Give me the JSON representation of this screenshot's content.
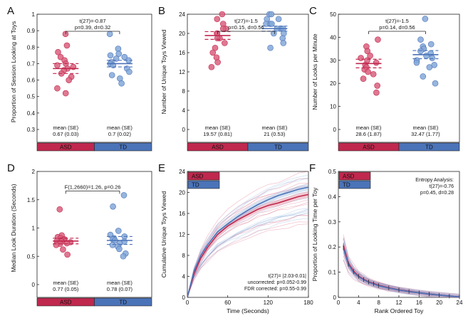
{
  "figure": {
    "colors": {
      "asd": "#c0284e",
      "td": "#4b73b8",
      "asd_point": "#d9607e",
      "td_point": "#84a8d8",
      "frame": "#222222"
    },
    "group_labels": [
      "ASD",
      "TD"
    ]
  },
  "chart_data": [
    {
      "panel": "A",
      "type": "scatter",
      "ylabel": "Proportion of Session Looking at Toys",
      "ylim": [
        0.3,
        1.0
      ],
      "yticks": [
        0.3,
        0.4,
        0.5,
        0.6,
        0.7,
        0.8,
        0.9,
        1
      ],
      "stat_lines": [
        "t(27)=-0.87",
        "p=0.39, d=0.32"
      ],
      "groups": [
        {
          "name": "ASD",
          "mean": 0.67,
          "se": 0.03,
          "mean_label": "mean (SE)",
          "value_label": "0.67 (0.03)",
          "values": [
            0.88,
            0.81,
            0.77,
            0.74,
            0.72,
            0.7,
            0.69,
            0.68,
            0.67,
            0.66,
            0.64,
            0.62,
            0.6,
            0.55,
            0.52
          ]
        },
        {
          "name": "TD",
          "mean": 0.7,
          "se": 0.02,
          "mean_label": "mean (SE)",
          "value_label": "0.7 (0.02)",
          "values": [
            0.88,
            0.79,
            0.76,
            0.75,
            0.74,
            0.73,
            0.72,
            0.71,
            0.7,
            0.69,
            0.67,
            0.65,
            0.63,
            0.61,
            0.58
          ]
        }
      ]
    },
    {
      "panel": "B",
      "type": "scatter",
      "ylabel": "Number of Unique Toys Viewed",
      "ylim": [
        0,
        24
      ],
      "yticks": [
        0,
        4,
        8,
        12,
        16,
        20,
        24
      ],
      "stat_lines": [
        "t(27)=-1.5",
        "p=0.15, d=0.56"
      ],
      "groups": [
        {
          "name": "ASD",
          "mean": 19.57,
          "se": 0.81,
          "mean_label": "mean (SE)",
          "value_label": "19.57 (0.81)",
          "values": [
            24,
            23,
            22,
            21,
            21,
            20,
            20,
            19,
            19,
            18,
            17,
            16,
            15,
            14,
            13
          ]
        },
        {
          "name": "TD",
          "mean": 21,
          "se": 0.53,
          "mean_label": "mean (SE)",
          "value_label": "21 (0.53)",
          "values": [
            24,
            24,
            23,
            23,
            22,
            22,
            22,
            21,
            21,
            21,
            20,
            20,
            19,
            18,
            17
          ]
        }
      ]
    },
    {
      "panel": "C",
      "type": "scatter",
      "ylabel": "Number of Looks per Minute",
      "ylim": [
        0,
        50
      ],
      "yticks": [
        0,
        10,
        20,
        30,
        40,
        50
      ],
      "stat_lines": [
        "t(27)=-1.5",
        "p=0.14, d=0.56"
      ],
      "groups": [
        {
          "name": "ASD",
          "mean": 28.6,
          "se": 1.87,
          "mean_label": "mean (SE)",
          "value_label": "28.6 (1.87)",
          "values": [
            39,
            36,
            34,
            32,
            31,
            30,
            29,
            28,
            27,
            26,
            25,
            24,
            22,
            19,
            16
          ]
        },
        {
          "name": "TD",
          "mean": 32.47,
          "se": 1.77,
          "mean_label": "mean (SE)",
          "value_label": "32.47 (1.77)",
          "values": [
            48,
            39,
            37,
            36,
            35,
            34,
            33,
            32,
            31,
            30,
            29,
            28,
            27,
            23,
            20
          ]
        }
      ]
    },
    {
      "panel": "D",
      "type": "scatter",
      "ylabel": "Median Look Duration (Seconds)",
      "ylim": [
        0,
        2
      ],
      "yticks": [
        0,
        0.5,
        1,
        1.5,
        2
      ],
      "stat_lines": [
        "F(1,2660)=1.26, p=0.26"
      ],
      "groups": [
        {
          "name": "ASD",
          "mean": 0.77,
          "se": 0.05,
          "mean_label": "mean (SE)",
          "value_label": "0.77 (0.05)",
          "values": [
            1.33,
            0.87,
            0.84,
            0.82,
            0.8,
            0.79,
            0.78,
            0.77,
            0.76,
            0.75,
            0.73,
            0.72,
            0.7,
            0.62,
            0.53
          ]
        },
        {
          "name": "TD",
          "mean": 0.78,
          "se": 0.07,
          "mean_label": "mean (SE)",
          "value_label": "0.78 (0.07)",
          "values": [
            1.58,
            1.38,
            0.95,
            0.88,
            0.85,
            0.82,
            0.8,
            0.78,
            0.76,
            0.73,
            0.7,
            0.67,
            0.63,
            0.55,
            0.5
          ]
        }
      ]
    },
    {
      "panel": "E",
      "type": "line",
      "xlabel": "Time (Seconds)",
      "ylabel": "Cumulative Unique Toys Viewed",
      "xlim": [
        0,
        180
      ],
      "ylim": [
        0,
        24
      ],
      "xticks": [
        0,
        60,
        120,
        180
      ],
      "yticks": [
        0,
        4,
        8,
        12,
        16,
        20,
        24
      ],
      "legend": [
        "ASD",
        "TD"
      ],
      "legend_placement": "top-left",
      "annotation": [
        "t(27)= |2.03-0.01|",
        "uncorrected: p=0.052-0.99",
        "FDR corrected: p=0.55-0.99"
      ],
      "series": [
        {
          "name": "ASD",
          "x": [
            0,
            10,
            20,
            30,
            45,
            60,
            75,
            90,
            105,
            120,
            135,
            150,
            165,
            180
          ],
          "y": [
            0,
            4.5,
            7.5,
            9.5,
            12.0,
            13.6,
            14.8,
            15.8,
            16.8,
            17.5,
            18.0,
            18.6,
            19.2,
            19.6
          ]
        },
        {
          "name": "TD",
          "x": [
            0,
            10,
            20,
            30,
            45,
            60,
            75,
            90,
            105,
            120,
            135,
            150,
            165,
            180
          ],
          "y": [
            0,
            5.0,
            8.0,
            10.0,
            12.5,
            14.0,
            15.4,
            16.6,
            17.7,
            18.6,
            19.4,
            20.0,
            20.6,
            21.0
          ]
        }
      ]
    },
    {
      "panel": "F",
      "type": "line",
      "xlabel": "Rank Ordered Toy",
      "ylabel": "Proportion of Looking Time per Toy",
      "xlim": [
        0,
        24
      ],
      "ylim": [
        0,
        0.5
      ],
      "xticks": [
        0,
        4,
        8,
        12,
        16,
        20,
        24
      ],
      "yticks": [
        0,
        0.1,
        0.2,
        0.3,
        0.4,
        0.5
      ],
      "legend": [
        "ASD",
        "TD"
      ],
      "legend_placement": "top-left",
      "annotation": [
        "Entropy Analysis:",
        "t(27)=-0.76",
        "p=0.45, d=0.28"
      ],
      "series": [
        {
          "name": "ASD",
          "x": [
            1,
            2,
            3,
            4,
            5,
            6,
            7,
            8,
            10,
            12,
            14,
            16,
            18,
            20,
            22,
            24
          ],
          "y": [
            0.205,
            0.135,
            0.105,
            0.085,
            0.072,
            0.062,
            0.055,
            0.048,
            0.038,
            0.03,
            0.024,
            0.018,
            0.013,
            0.009,
            0.005,
            0.002
          ]
        },
        {
          "name": "TD",
          "x": [
            1,
            2,
            3,
            4,
            5,
            6,
            7,
            8,
            10,
            12,
            14,
            16,
            18,
            20,
            22,
            24
          ],
          "y": [
            0.195,
            0.13,
            0.1,
            0.082,
            0.07,
            0.06,
            0.053,
            0.046,
            0.037,
            0.029,
            0.023,
            0.018,
            0.013,
            0.009,
            0.005,
            0.002
          ]
        }
      ]
    }
  ]
}
